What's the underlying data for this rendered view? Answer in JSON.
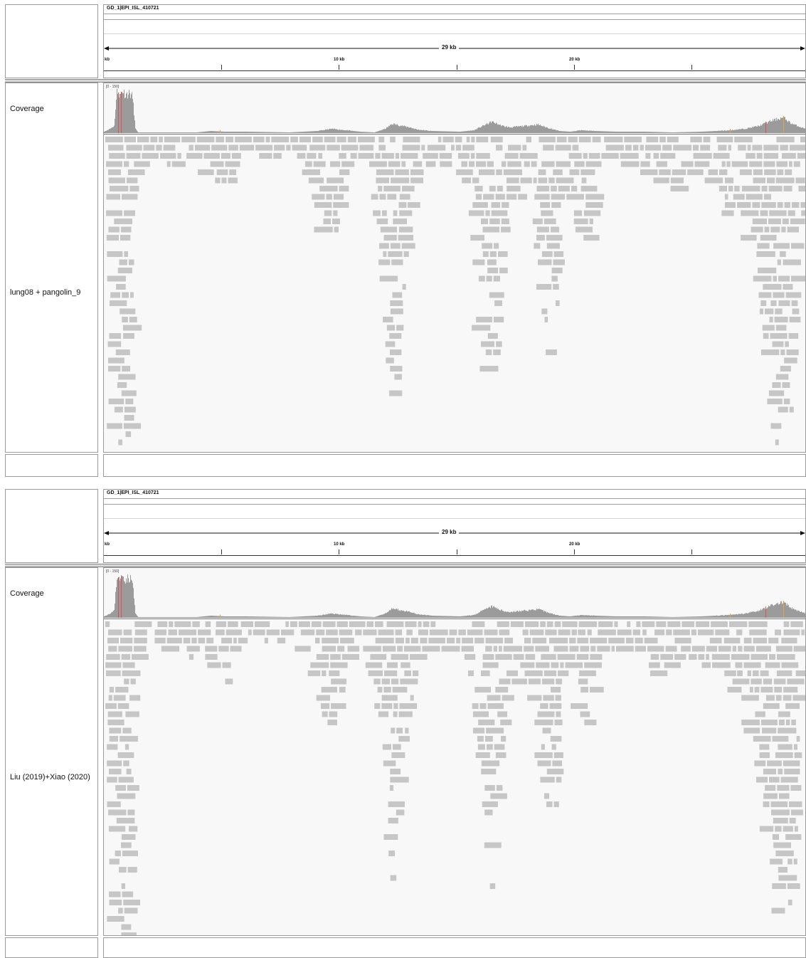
{
  "panels": [
    {
      "genome": "GD_1|EPI_ISL_410721",
      "ruler": {
        "span": "29 kb",
        "start": "kb",
        "ticks": [
          "10 kb",
          "20 kb"
        ]
      },
      "coverage": {
        "label": "Coverage",
        "range": "[0 - 150]"
      },
      "alignment": {
        "label": "lung08 + pangolin_9"
      }
    },
    {
      "genome": "GD_1|EPI_ISL_410721",
      "ruler": {
        "span": "29 kb",
        "start": "kb",
        "ticks": [
          "10 kb",
          "20 kb"
        ]
      },
      "coverage": {
        "label": "Coverage",
        "range": "[0 - 150]"
      },
      "alignment": {
        "label": "Liu (2019)+Xiao (2020)"
      }
    }
  ],
  "colors": {
    "read": "#c6c6c6",
    "coverage": "#9b9b9b",
    "mismatch_red": "#d9534f",
    "mismatch_orange": "#e8a23c",
    "border": "#9a9a9a"
  }
}
